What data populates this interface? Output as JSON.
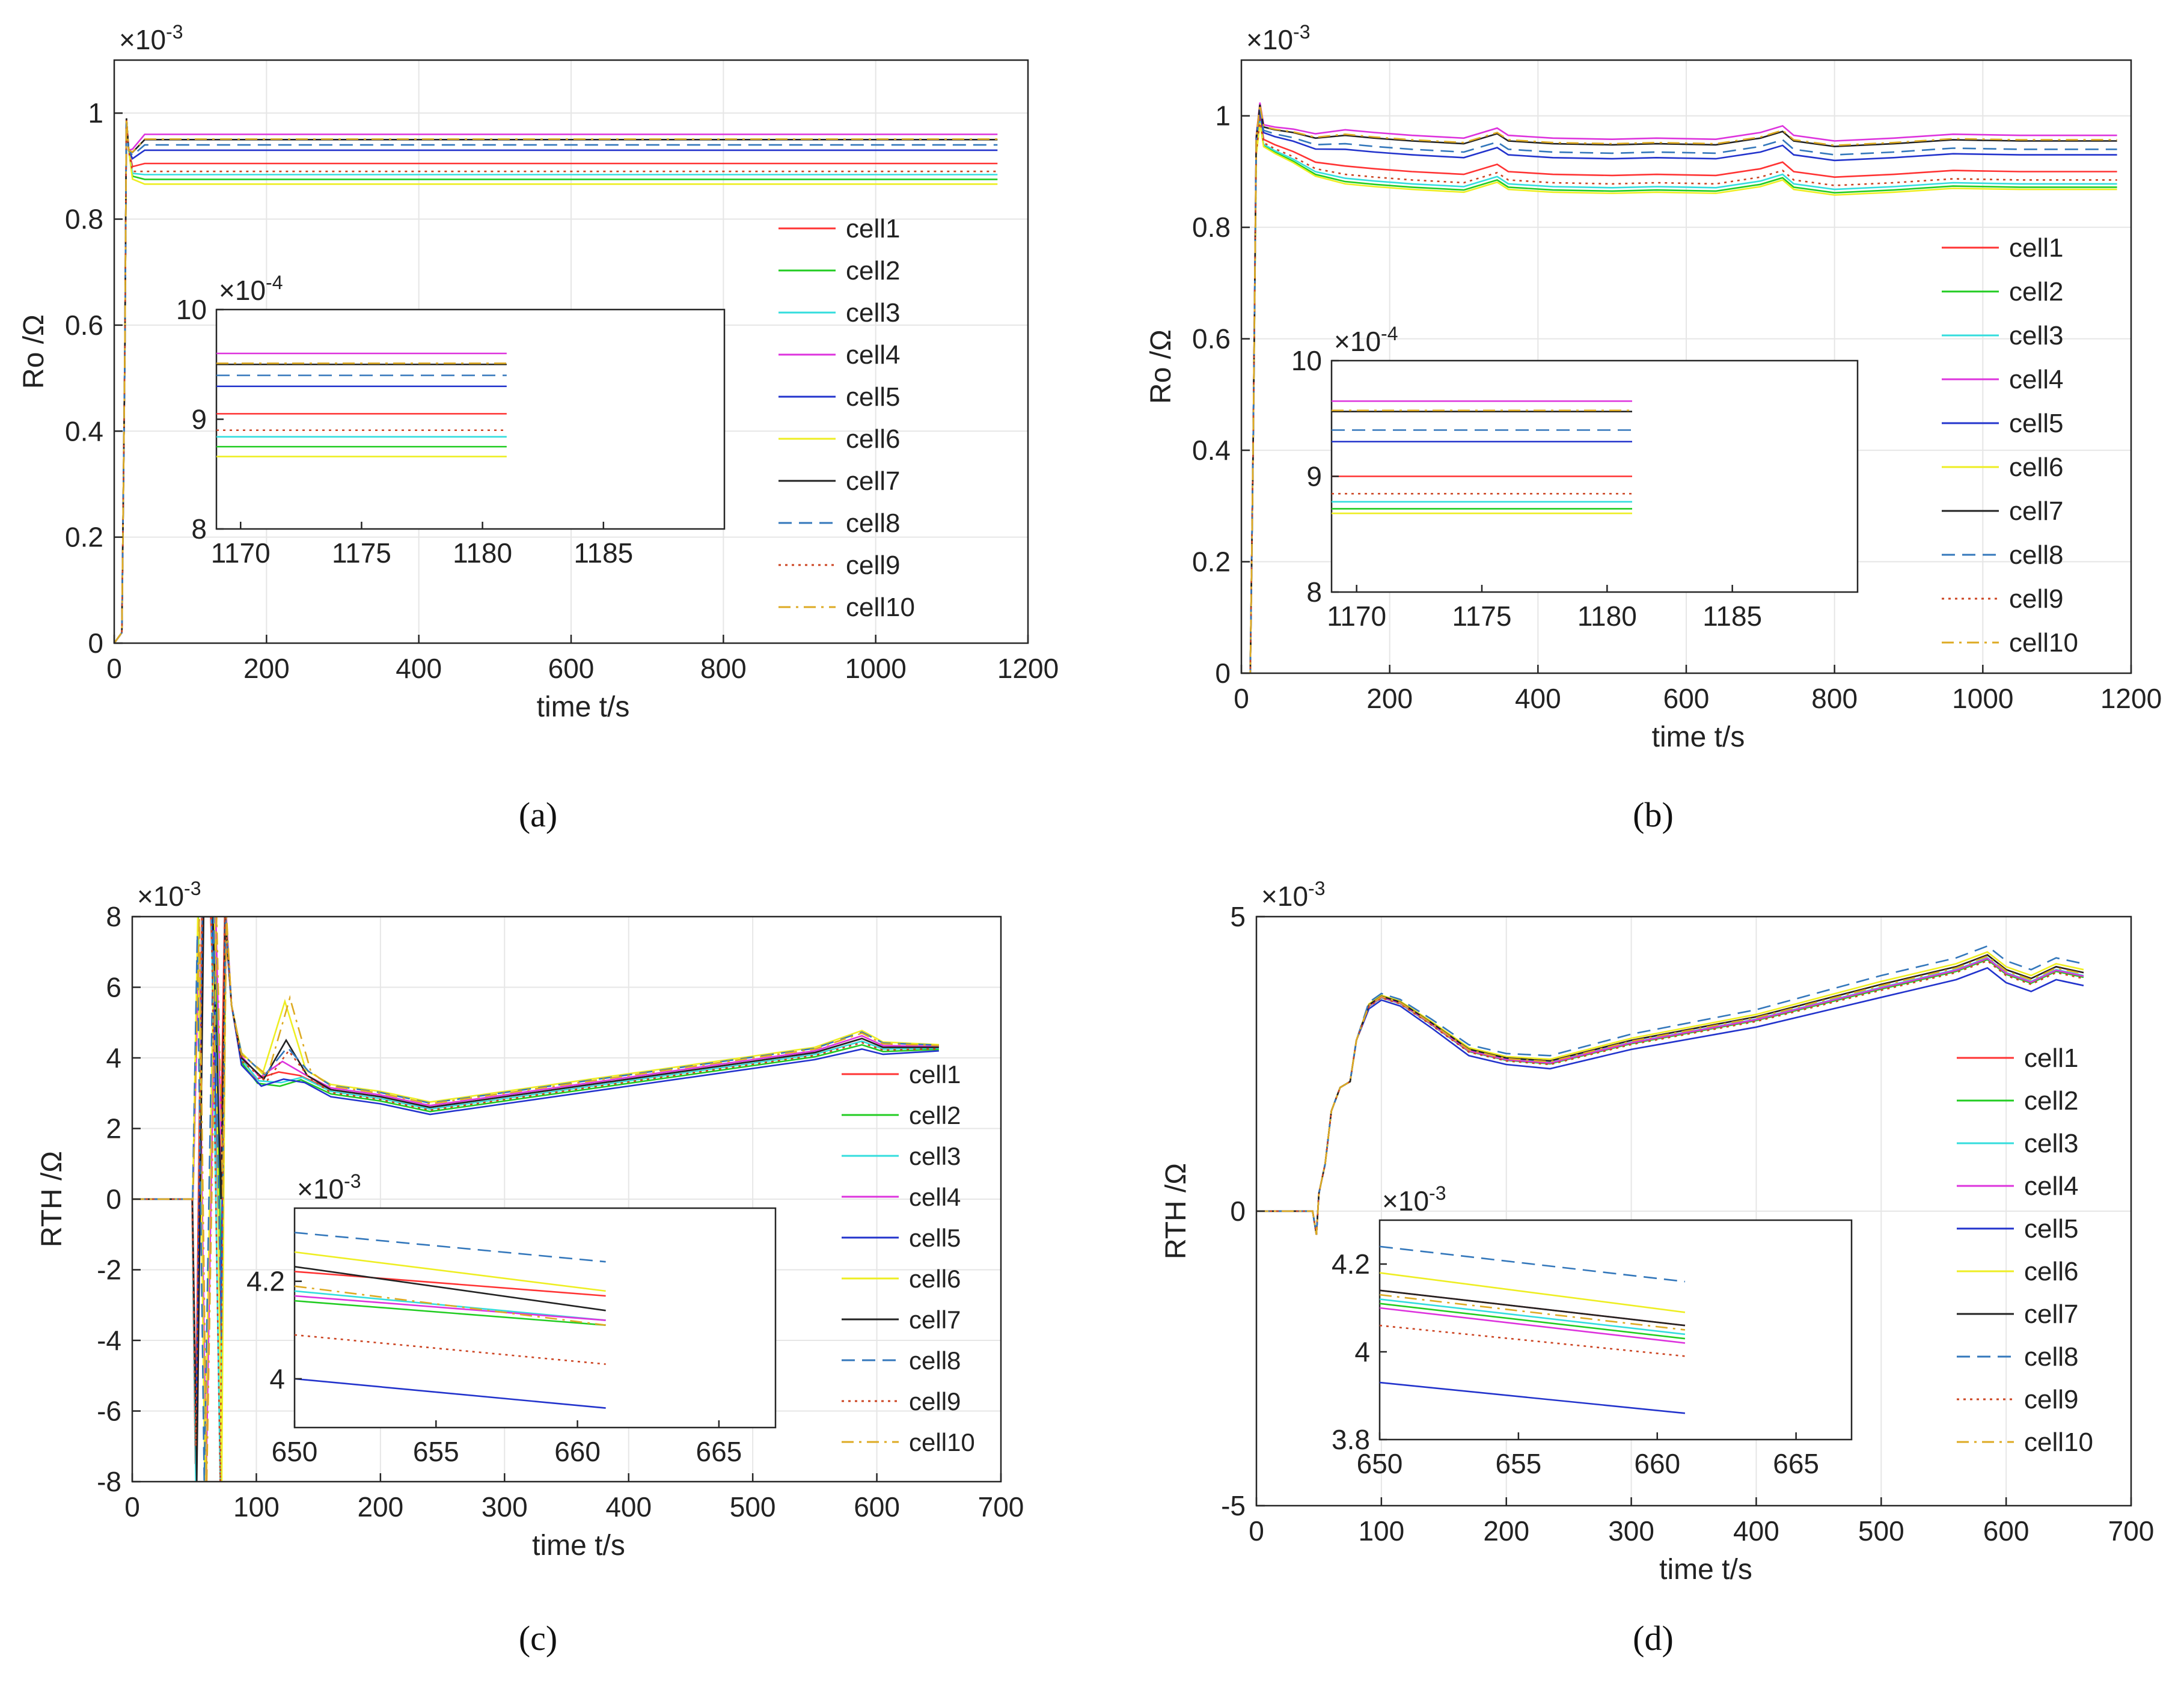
{
  "colors": {
    "cell1": "#ff3333",
    "cell2": "#22cc22",
    "cell3": "#33dddd",
    "cell4": "#dd33dd",
    "cell5": "#2233cc",
    "cell6": "#eeee22",
    "cell7": "#222222",
    "cell8": "#3377bb",
    "cell9": "#cc4422",
    "cell10": "#ddaa22"
  },
  "chart_data": [
    {
      "id": "a",
      "type": "line",
      "caption": "(a)",
      "xlabel": "time t/s",
      "ylabel": "Ro /Ω",
      "exponent_label": "×10",
      "exponent_power": "-3",
      "xlim": [
        0,
        1200
      ],
      "ylim": [
        0,
        1.1
      ],
      "xticks": [
        "0",
        "200",
        "400",
        "600",
        "800",
        "1000",
        "1200"
      ],
      "xtick_values": [
        0,
        200,
        400,
        600,
        800,
        1000,
        1200
      ],
      "yticks": [
        "0",
        "0.2",
        "0.4",
        "0.6",
        "0.8",
        "1"
      ],
      "ytick_values": [
        0,
        0.2,
        0.4,
        0.6,
        0.8,
        1.0
      ],
      "grid": true,
      "legend_position": "right",
      "series": [
        {
          "name": "cell1",
          "color": "#ff3333",
          "dash": "solid",
          "end": 0.905
        },
        {
          "name": "cell2",
          "color": "#22cc22",
          "dash": "solid",
          "end": 0.875
        },
        {
          "name": "cell3",
          "color": "#33dddd",
          "dash": "solid",
          "end": 0.884
        },
        {
          "name": "cell4",
          "color": "#dd33dd",
          "dash": "solid",
          "end": 0.96
        },
        {
          "name": "cell5",
          "color": "#2233cc",
          "dash": "solid",
          "end": 0.93
        },
        {
          "name": "cell6",
          "color": "#eeee22",
          "dash": "solid",
          "end": 0.866
        },
        {
          "name": "cell7",
          "color": "#222222",
          "dash": "solid",
          "end": 0.95
        },
        {
          "name": "cell8",
          "color": "#3377bb",
          "dash": "dashed",
          "end": 0.94
        },
        {
          "name": "cell9",
          "color": "#cc4422",
          "dash": "dotted",
          "end": 0.89
        },
        {
          "name": "cell10",
          "color": "#ddaa22",
          "dash": "dashdot",
          "end": 0.951
        }
      ],
      "inset": {
        "exponent_label": "×10",
        "exponent_power": "-4",
        "xlim": [
          1169,
          1190
        ],
        "ylim": [
          8,
          10
        ],
        "xticks": [
          "1170",
          "1175",
          "1180",
          "1185"
        ],
        "xtick_values": [
          1170,
          1175,
          1180,
          1185
        ],
        "yticks": [
          "8",
          "9",
          "10"
        ],
        "ytick_values": [
          8,
          9,
          10
        ],
        "x_end": 1181,
        "values": {
          "cell1": [
            9.05,
            9.05
          ],
          "cell2": [
            8.75,
            8.75
          ],
          "cell3": [
            8.84,
            8.84
          ],
          "cell4": [
            9.6,
            9.6
          ],
          "cell5": [
            9.3,
            9.3
          ],
          "cell6": [
            8.66,
            8.66
          ],
          "cell7": [
            9.5,
            9.5
          ],
          "cell8": [
            9.4,
            9.4
          ],
          "cell9": [
            8.9,
            8.9
          ],
          "cell10": [
            9.51,
            9.51
          ]
        }
      }
    },
    {
      "id": "b",
      "type": "line",
      "caption": "(b)",
      "xlabel": "time t/s",
      "ylabel": "Ro /Ω",
      "exponent_label": "×10",
      "exponent_power": "-3",
      "xlim": [
        0,
        1200
      ],
      "ylim": [
        0,
        1.1
      ],
      "xticks": [
        "0",
        "200",
        "400",
        "600",
        "800",
        "1000",
        "1200"
      ],
      "xtick_values": [
        0,
        200,
        400,
        600,
        800,
        1000,
        1200
      ],
      "yticks": [
        "0",
        "0.2",
        "0.4",
        "0.6",
        "0.8",
        "1"
      ],
      "ytick_values": [
        0,
        0.2,
        0.4,
        0.6,
        0.8,
        1.0
      ],
      "grid": true,
      "legend_position": "right",
      "series": [
        {
          "name": "cell1",
          "color": "#ff3333",
          "dash": "solid",
          "end": 0.9
        },
        {
          "name": "cell2",
          "color": "#22cc22",
          "dash": "solid",
          "end": 0.872
        },
        {
          "name": "cell3",
          "color": "#33dddd",
          "dash": "solid",
          "end": 0.878
        },
        {
          "name": "cell4",
          "color": "#dd33dd",
          "dash": "solid",
          "end": 0.965
        },
        {
          "name": "cell5",
          "color": "#2233cc",
          "dash": "solid",
          "end": 0.93
        },
        {
          "name": "cell6",
          "color": "#eeee22",
          "dash": "solid",
          "end": 0.868
        },
        {
          "name": "cell7",
          "color": "#222222",
          "dash": "solid",
          "end": 0.955
        },
        {
          "name": "cell8",
          "color": "#3377bb",
          "dash": "dashed",
          "end": 0.94
        },
        {
          "name": "cell9",
          "color": "#cc4422",
          "dash": "dotted",
          "end": 0.885
        },
        {
          "name": "cell10",
          "color": "#ddaa22",
          "dash": "dashdot",
          "end": 0.957
        }
      ],
      "inset": {
        "exponent_label": "×10",
        "exponent_power": "-4",
        "xlim": [
          1169,
          1190
        ],
        "ylim": [
          8,
          10
        ],
        "xticks": [
          "1170",
          "1175",
          "1180",
          "1185"
        ],
        "xtick_values": [
          1170,
          1175,
          1180,
          1185
        ],
        "yticks": [
          "8",
          "9",
          "10"
        ],
        "ytick_values": [
          8,
          9,
          10
        ],
        "x_end": 1181,
        "values": {
          "cell1": [
            9.0,
            9.0
          ],
          "cell2": [
            8.72,
            8.72
          ],
          "cell3": [
            8.78,
            8.78
          ],
          "cell4": [
            9.65,
            9.65
          ],
          "cell5": [
            9.3,
            9.3
          ],
          "cell6": [
            8.68,
            8.68
          ],
          "cell7": [
            9.56,
            9.56
          ],
          "cell8": [
            9.4,
            9.4
          ],
          "cell9": [
            8.85,
            8.85
          ],
          "cell10": [
            9.57,
            9.57
          ]
        }
      }
    },
    {
      "id": "c",
      "type": "line",
      "caption": "(c)",
      "xlabel": "time t/s",
      "ylabel": "RTH /Ω",
      "exponent_label": "×10",
      "exponent_power": "-3",
      "xlim": [
        0,
        700
      ],
      "ylim": [
        -8,
        8
      ],
      "xticks": [
        "0",
        "100",
        "200",
        "300",
        "400",
        "500",
        "600",
        "700"
      ],
      "xtick_values": [
        0,
        100,
        200,
        300,
        400,
        500,
        600,
        700
      ],
      "yticks": [
        "-8",
        "-6",
        "-4",
        "-2",
        "0",
        "2",
        "4",
        "6",
        "8"
      ],
      "ytick_values": [
        -8,
        -6,
        -4,
        -2,
        0,
        2,
        4,
        6,
        8
      ],
      "grid": true,
      "legend_position": "right",
      "series": [
        {
          "name": "cell1",
          "color": "#ff3333",
          "dash": "solid"
        },
        {
          "name": "cell2",
          "color": "#22cc22",
          "dash": "solid"
        },
        {
          "name": "cell3",
          "color": "#33dddd",
          "dash": "solid"
        },
        {
          "name": "cell4",
          "color": "#dd33dd",
          "dash": "solid"
        },
        {
          "name": "cell5",
          "color": "#2233cc",
          "dash": "solid"
        },
        {
          "name": "cell6",
          "color": "#eeee22",
          "dash": "solid"
        },
        {
          "name": "cell7",
          "color": "#222222",
          "dash": "solid"
        },
        {
          "name": "cell8",
          "color": "#3377bb",
          "dash": "dashed"
        },
        {
          "name": "cell9",
          "color": "#cc4422",
          "dash": "dotted"
        },
        {
          "name": "cell10",
          "color": "#ddaa22",
          "dash": "dashdot"
        }
      ],
      "inset": {
        "exponent_label": "×10",
        "exponent_power": "-3",
        "xlim": [
          650,
          667
        ],
        "ylim": [
          3.9,
          4.35
        ],
        "xticks": [
          "650",
          "655",
          "660",
          "665"
        ],
        "xtick_values": [
          650,
          655,
          660,
          665
        ],
        "yticks": [
          "4",
          "4.2"
        ],
        "ytick_values": [
          4.0,
          4.2
        ],
        "x_end": 661,
        "values": {
          "cell1": [
            4.22,
            4.17
          ],
          "cell2": [
            4.16,
            4.11
          ],
          "cell3": [
            4.18,
            4.12
          ],
          "cell4": [
            4.17,
            4.12
          ],
          "cell5": [
            4.0,
            3.94
          ],
          "cell6": [
            4.26,
            4.18
          ],
          "cell7": [
            4.23,
            4.14
          ],
          "cell8": [
            4.3,
            4.24
          ],
          "cell9": [
            4.09,
            4.03
          ],
          "cell10": [
            4.19,
            4.11
          ]
        }
      }
    },
    {
      "id": "d",
      "type": "line",
      "caption": "(d)",
      "xlabel": "time t/s",
      "ylabel": "RTH /Ω",
      "exponent_label": "×10",
      "exponent_power": "-3",
      "xlim": [
        0,
        700
      ],
      "ylim": [
        -5,
        5
      ],
      "xticks": [
        "0",
        "100",
        "200",
        "300",
        "400",
        "500",
        "600",
        "700"
      ],
      "xtick_values": [
        0,
        100,
        200,
        300,
        400,
        500,
        600,
        700
      ],
      "yticks": [
        "-5",
        "0",
        "5"
      ],
      "ytick_values": [
        -5,
        0,
        5
      ],
      "grid": true,
      "legend_position": "right",
      "series": [
        {
          "name": "cell1",
          "color": "#ff3333",
          "dash": "solid"
        },
        {
          "name": "cell2",
          "color": "#22cc22",
          "dash": "solid"
        },
        {
          "name": "cell3",
          "color": "#33dddd",
          "dash": "solid"
        },
        {
          "name": "cell4",
          "color": "#dd33dd",
          "dash": "solid"
        },
        {
          "name": "cell5",
          "color": "#2233cc",
          "dash": "solid"
        },
        {
          "name": "cell6",
          "color": "#eeee22",
          "dash": "solid"
        },
        {
          "name": "cell7",
          "color": "#222222",
          "dash": "solid"
        },
        {
          "name": "cell8",
          "color": "#3377bb",
          "dash": "dashed"
        },
        {
          "name": "cell9",
          "color": "#cc4422",
          "dash": "dotted"
        },
        {
          "name": "cell10",
          "color": "#ddaa22",
          "dash": "dashdot"
        }
      ],
      "inset": {
        "exponent_label": "×10",
        "exponent_power": "-3",
        "xlim": [
          650,
          667
        ],
        "ylim": [
          3.8,
          4.3
        ],
        "xticks": [
          "650",
          "655",
          "660",
          "665"
        ],
        "xtick_values": [
          650,
          655,
          660,
          665
        ],
        "yticks": [
          "3.8",
          "4",
          "4.2"
        ],
        "ytick_values": [
          3.8,
          4.0,
          4.2
        ],
        "x_end": 661,
        "values": {
          "cell1": [
            4.14,
            4.06
          ],
          "cell2": [
            4.11,
            4.03
          ],
          "cell3": [
            4.12,
            4.04
          ],
          "cell4": [
            4.1,
            4.02
          ],
          "cell5": [
            3.93,
            3.86
          ],
          "cell6": [
            4.18,
            4.09
          ],
          "cell7": [
            4.14,
            4.06
          ],
          "cell8": [
            4.24,
            4.16
          ],
          "cell9": [
            4.06,
            3.99
          ],
          "cell10": [
            4.13,
            4.05
          ]
        }
      }
    }
  ]
}
